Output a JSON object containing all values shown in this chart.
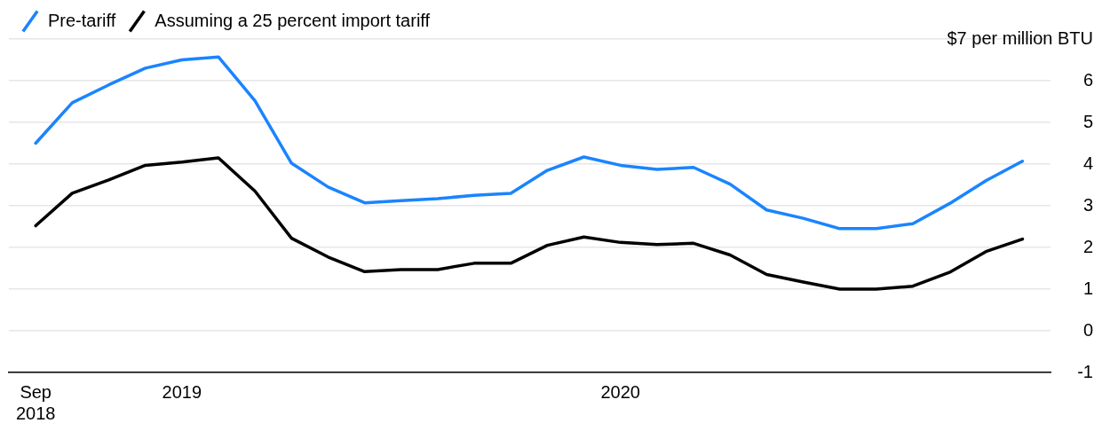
{
  "chart_data": {
    "type": "line",
    "x": [
      "2018-09",
      "2018-10",
      "2018-11",
      "2018-12",
      "2019-01",
      "2019-02",
      "2019-03",
      "2019-04",
      "2019-05",
      "2019-06",
      "2019-07",
      "2019-08",
      "2019-09",
      "2019-10",
      "2019-11",
      "2019-12",
      "2020-01",
      "2020-02",
      "2020-03",
      "2020-04",
      "2020-05",
      "2020-06",
      "2020-07",
      "2020-08",
      "2020-09",
      "2020-10",
      "2020-11",
      "2020-12"
    ],
    "series": [
      {
        "name": "Pre-tariff",
        "color": "#1a84ff",
        "values": [
          4.5,
          5.47,
          5.9,
          6.3,
          6.5,
          6.57,
          5.52,
          4.02,
          3.45,
          3.07,
          3.12,
          3.17,
          3.25,
          3.3,
          3.85,
          4.17,
          3.97,
          3.87,
          3.92,
          3.52,
          2.9,
          2.7,
          2.45,
          2.45,
          2.57,
          3.05,
          3.6,
          4.07
        ]
      },
      {
        "name": "Assuming a 25 percent import tariff",
        "color": "#000000",
        "values": [
          2.52,
          3.3,
          3.62,
          3.97,
          4.05,
          4.15,
          3.35,
          2.22,
          1.77,
          1.42,
          1.47,
          1.47,
          1.62,
          1.62,
          2.05,
          2.25,
          2.12,
          2.07,
          2.1,
          1.82,
          1.35,
          1.17,
          1.0,
          1.0,
          1.07,
          1.4,
          1.9,
          2.2
        ]
      }
    ],
    "xlim": [
      "2018-08-09",
      "2020-12-24"
    ],
    "xticks": [
      {
        "value": "2018-09",
        "label": "Sep 2018"
      },
      {
        "value": "2019-01",
        "label": "2019"
      },
      {
        "value": "2020-01",
        "label": "2020"
      }
    ],
    "ylim": [
      -1,
      7
    ],
    "yticks": [
      -1,
      0,
      1,
      2,
      3,
      4,
      5,
      6,
      {
        "value": 7,
        "label": "$7 per million BTU"
      }
    ],
    "grid": "y",
    "legend": "top left",
    "marker": "none",
    "line_style": "solid"
  }
}
